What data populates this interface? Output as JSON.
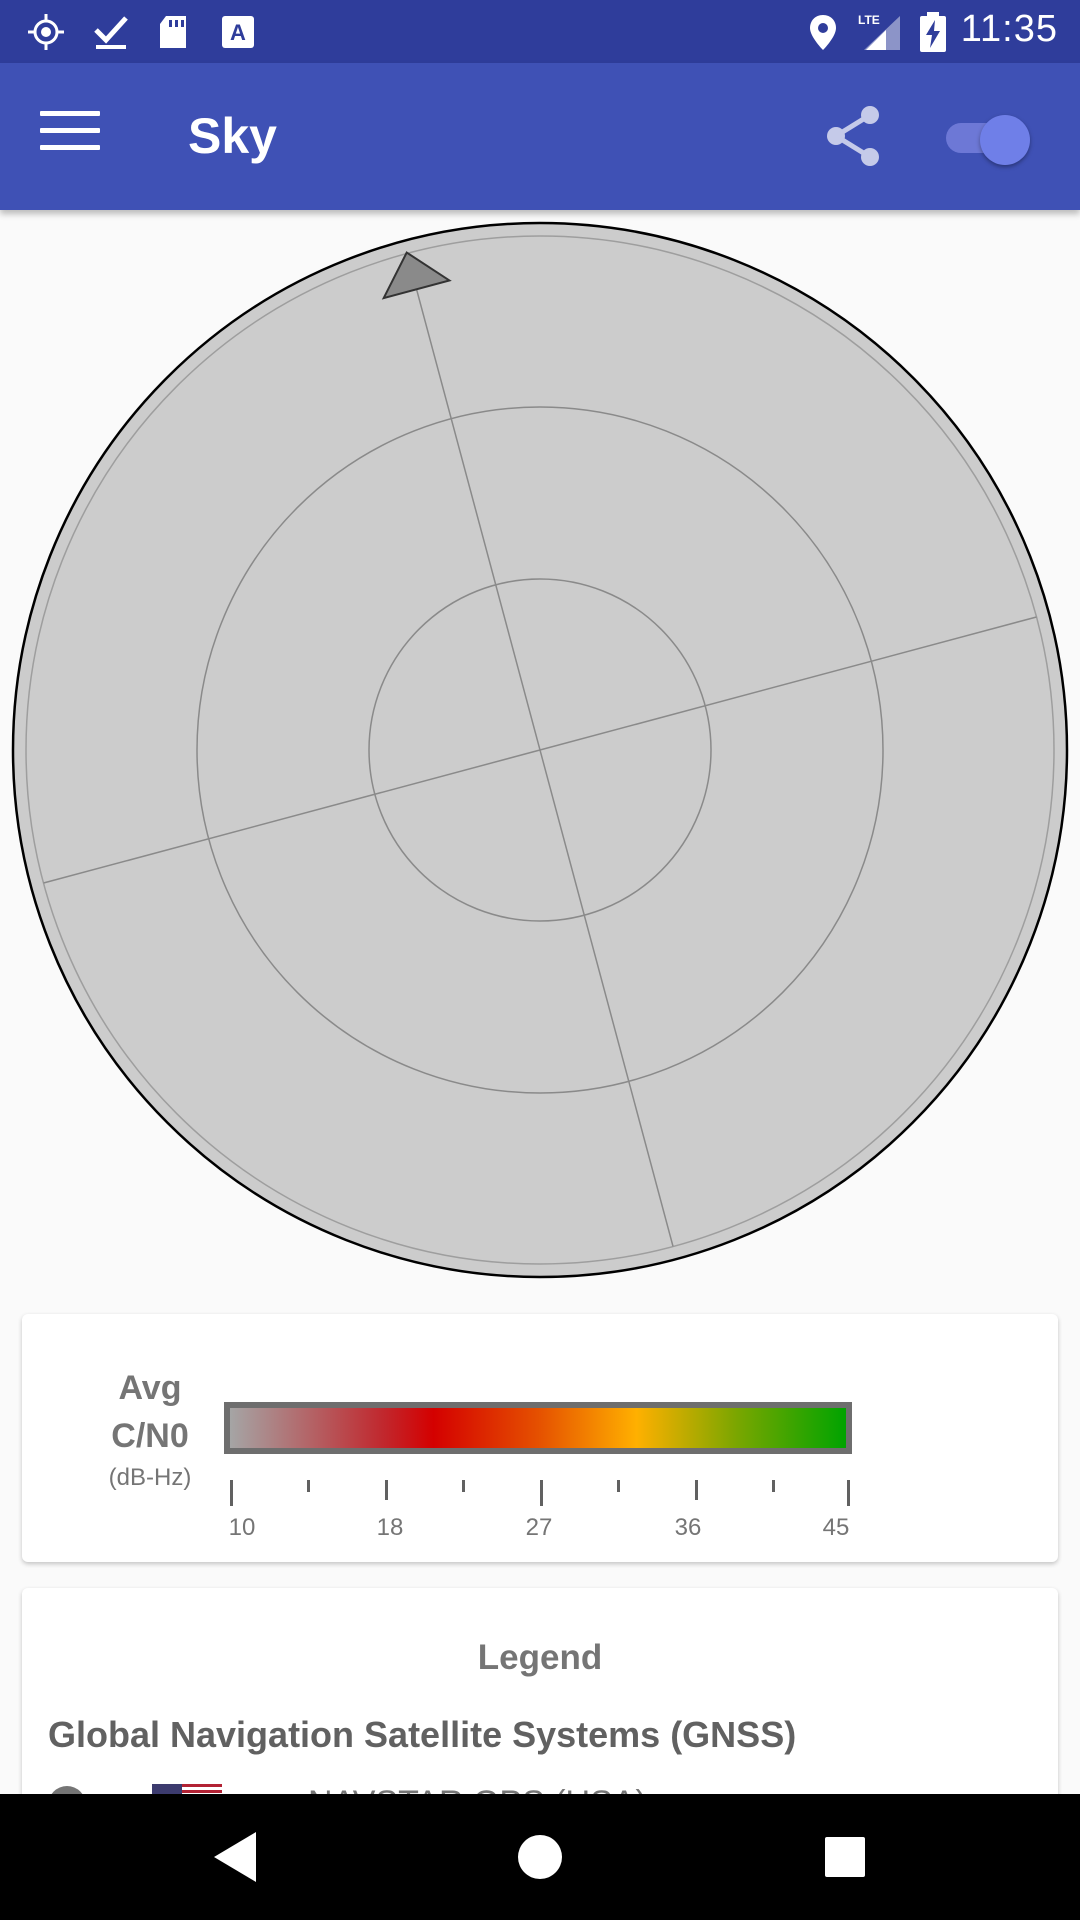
{
  "status_bar": {
    "time": "11:35",
    "network_label": "LTE",
    "icons": [
      "location-target-icon",
      "checkmark-download-icon",
      "sd-card-icon",
      "a-font-icon",
      "location-pin-icon",
      "lte-signal-icon",
      "battery-charging-icon"
    ]
  },
  "app_bar": {
    "title": "Sky",
    "menu_icon": "hamburger-menu-icon",
    "share_icon": "share-icon",
    "toggle_on": true
  },
  "sky_view": {
    "rings": 3,
    "compass_rotation_deg": -15
  },
  "cn0_card": {
    "label_line1": "Avg",
    "label_line2": "C/N0",
    "unit": "(dB-Hz)",
    "tick_labels": [
      "10",
      "18",
      "27",
      "36",
      "45"
    ],
    "gradient_colors": [
      "#a5a5a5",
      "#d40000",
      "#ffb000",
      "#00a300"
    ]
  },
  "legend_card": {
    "title": "Legend",
    "gnss_heading": "Global Navigation Satellite Systems (GNSS)",
    "rows": [
      {
        "dash1": "–",
        "dash2": "–",
        "text": "NAVSTAR GPS (USA)"
      }
    ]
  },
  "nav_bar": {
    "buttons": [
      "back-icon",
      "home-icon",
      "recents-icon"
    ]
  }
}
